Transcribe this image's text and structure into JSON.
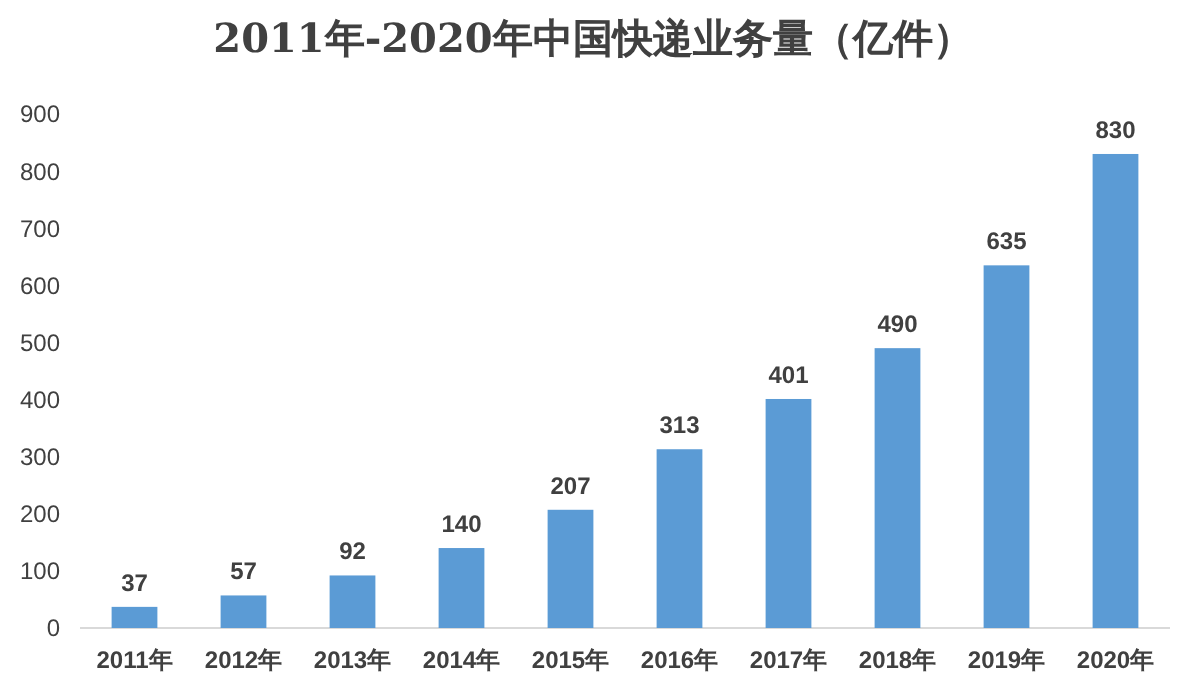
{
  "chart_data": {
    "type": "bar",
    "title": "2011年-2020年中国快递业务量（亿件）",
    "categories": [
      "2011年",
      "2012年",
      "2013年",
      "2014年",
      "2015年",
      "2016年",
      "2017年",
      "2018年",
      "2019年",
      "2020年"
    ],
    "values": [
      37,
      57,
      92,
      140,
      207,
      313,
      401,
      490,
      635,
      830
    ],
    "color": "#5b9bd5",
    "ylim": [
      0,
      900
    ],
    "yticks": [
      0,
      100,
      200,
      300,
      400,
      500,
      600,
      700,
      800,
      900
    ],
    "grid": false,
    "data_labels": true
  }
}
